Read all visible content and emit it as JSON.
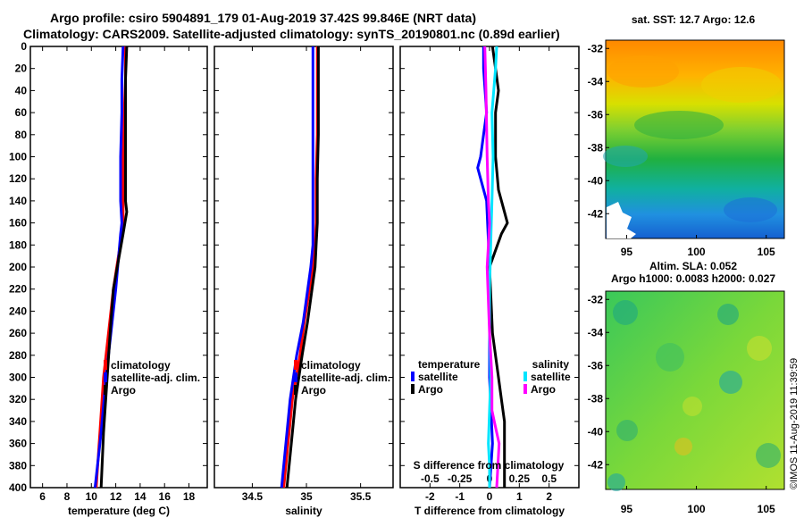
{
  "title_line1": "Argo profile: csiro 5904891_179 01-Aug-2019 37.42S 99.846E (NRT data)",
  "title_line2": "Climatology: CARS2009. Satellite-adjusted climatology: synTS_20190801.nc (0.89d earlier)",
  "credit": "©IMOS 11-Aug-2019 11:39:59",
  "colors": {
    "climatology": "#ff0000",
    "satellite": "#0000ff",
    "argo": "#000000",
    "sat_s": "#00e5ff",
    "argo_s": "#ff00ff"
  },
  "chart_data": [
    {
      "id": "temperature",
      "type": "line",
      "xlabel": "temperature (deg C)",
      "ylabel": "",
      "xlim": [
        5,
        19.5
      ],
      "ylim": [
        400,
        0
      ],
      "xticks": [
        6,
        8,
        10,
        12,
        14,
        16,
        18
      ],
      "yticks": [
        0,
        20,
        40,
        60,
        80,
        100,
        120,
        140,
        160,
        180,
        200,
        220,
        240,
        260,
        280,
        300,
        320,
        340,
        360,
        380,
        400
      ],
      "legend": {
        "position": "center-right",
        "entries": [
          {
            "label": "climatology",
            "color": "#ff0000"
          },
          {
            "label": "satellite-adj. clim.",
            "color": "#0000ff"
          },
          {
            "label": "Argo",
            "color": "#000000"
          }
        ]
      },
      "series": [
        {
          "name": "climatology",
          "color": "#ff0000",
          "x": [
            12.8,
            12.8,
            12.7,
            12.6,
            12.6,
            12.6,
            12.5,
            11.8,
            11.5,
            11.0,
            10.7,
            10.4
          ],
          "y": [
            0,
            30,
            60,
            100,
            140,
            160,
            170,
            220,
            250,
            300,
            350,
            400
          ]
        },
        {
          "name": "satellite-adj. clim.",
          "color": "#0000ff",
          "x": [
            12.6,
            12.5,
            12.5,
            12.4,
            12.4,
            12.5,
            12.4,
            12.0,
            11.7,
            11.2,
            10.8,
            10.3
          ],
          "y": [
            0,
            30,
            60,
            100,
            140,
            160,
            170,
            220,
            250,
            300,
            350,
            400
          ]
        },
        {
          "name": "Argo",
          "color": "#000000",
          "x": [
            12.9,
            12.8,
            12.8,
            12.8,
            12.8,
            12.9,
            12.6,
            11.8,
            11.6,
            11.3,
            11.0,
            10.8
          ],
          "y": [
            0,
            30,
            60,
            100,
            140,
            150,
            170,
            220,
            250,
            300,
            350,
            400
          ]
        }
      ]
    },
    {
      "id": "salinity",
      "type": "line",
      "xlabel": "salinity",
      "ylabel": "",
      "xlim": [
        34.15,
        35.8
      ],
      "ylim": [
        400,
        0
      ],
      "xticks": [
        34.5,
        35,
        35.5
      ],
      "legend": {
        "position": "center-right",
        "entries": [
          {
            "label": "climatology",
            "color": "#ff0000"
          },
          {
            "label": "satellite-adj. clim.",
            "color": "#0000ff"
          },
          {
            "label": "Argo",
            "color": "#000000"
          }
        ]
      },
      "series": [
        {
          "name": "climatology",
          "color": "#ff0000",
          "x": [
            35.1,
            35.1,
            35.1,
            35.09,
            35.09,
            35.08,
            35.06,
            34.98,
            34.94,
            34.87,
            34.83,
            34.79
          ],
          "y": [
            0,
            40,
            80,
            120,
            160,
            180,
            200,
            250,
            280,
            320,
            360,
            400
          ]
        },
        {
          "name": "satellite-adj. clim.",
          "color": "#0000ff",
          "x": [
            35.06,
            35.06,
            35.06,
            35.06,
            35.06,
            35.06,
            35.04,
            34.97,
            34.91,
            34.85,
            34.81,
            34.77
          ],
          "y": [
            0,
            40,
            80,
            120,
            160,
            180,
            200,
            250,
            280,
            320,
            360,
            400
          ]
        },
        {
          "name": "Argo",
          "color": "#000000",
          "x": [
            35.11,
            35.11,
            35.11,
            35.1,
            35.1,
            35.09,
            35.08,
            35.01,
            34.96,
            34.9,
            34.86,
            34.82
          ],
          "y": [
            0,
            40,
            80,
            120,
            160,
            180,
            200,
            250,
            280,
            320,
            360,
            400
          ]
        }
      ]
    },
    {
      "id": "difference",
      "type": "line",
      "xlabel": "T difference from climatology",
      "xlabel_top": "S difference from climatology",
      "xlim": [
        -3,
        3
      ],
      "xlim_s": [
        -0.75,
        0.75
      ],
      "ylim": [
        400,
        0
      ],
      "xticks": [
        -2,
        -1,
        0,
        1,
        2
      ],
      "xticks_s": [
        -0.5,
        -0.25,
        0,
        0.25,
        0.5
      ],
      "legend": {
        "position": "center",
        "temperature_heading": "temperature",
        "salinity_heading": "salinity",
        "entries_t": [
          {
            "label": "satellite",
            "color": "#0000ff"
          },
          {
            "label": "Argo",
            "color": "#000000"
          }
        ],
        "entries_s": [
          {
            "label": "satellite",
            "color": "#00e5ff"
          },
          {
            "label": "Argo",
            "color": "#ff00ff"
          }
        ]
      },
      "series": [
        {
          "name": "T satellite",
          "color": "#0000ff",
          "x": [
            -0.2,
            -0.2,
            -0.1,
            -0.2,
            -0.3,
            -0.4,
            -0.1,
            0,
            0,
            0,
            0.1,
            0
          ],
          "y": [
            0,
            20,
            60,
            80,
            100,
            110,
            140,
            200,
            260,
            300,
            360,
            400
          ]
        },
        {
          "name": "T Argo",
          "color": "#000000",
          "x": [
            0.1,
            0.2,
            0.3,
            0.2,
            0.2,
            0.3,
            0.5,
            0.6,
            0.4,
            0,
            0.1,
            0.3,
            0.4,
            0.5,
            0.5,
            0.5
          ],
          "y": [
            0,
            20,
            40,
            60,
            100,
            130,
            150,
            160,
            170,
            200,
            260,
            300,
            320,
            340,
            360,
            400
          ]
        },
        {
          "name": "S satellite",
          "color": "#00e5ff",
          "x": [
            0.06,
            0.05,
            0.02,
            0.03,
            0.02,
            0.01,
            0,
            0,
            0.01,
            0,
            -0.01,
            0,
            0
          ],
          "y": [
            0,
            20,
            60,
            100,
            140,
            180,
            220,
            260,
            300,
            330,
            360,
            380,
            400
          ]
        },
        {
          "name": "S Argo",
          "color": "#ff00ff",
          "x": [
            -0.04,
            -0.03,
            -0.02,
            -0.01,
            0,
            -0.01,
            -0.02,
            0,
            0.02,
            0.02,
            0.04,
            0.08,
            0.06
          ],
          "y": [
            0,
            40,
            100,
            140,
            160,
            180,
            200,
            260,
            300,
            330,
            340,
            360,
            400
          ]
        }
      ]
    },
    {
      "id": "sst_map",
      "type": "heatmap",
      "title": "sat. SST: 12.7 Argo: 12.6",
      "xlim": [
        93.5,
        106.3
      ],
      "ylim": [
        -43.5,
        -31.5
      ],
      "xticks": [
        95,
        100,
        105
      ],
      "yticks": [
        -32,
        -34,
        -36,
        -38,
        -40,
        -42
      ]
    },
    {
      "id": "sla_map",
      "type": "heatmap",
      "title_line1": "Altim. SLA: 0.052",
      "title_line2": "Argo h1000: 0.0083 h2000: 0.027",
      "xlim": [
        93.5,
        106.3
      ],
      "ylim": [
        -43.5,
        -31.5
      ],
      "xticks": [
        95,
        100,
        105
      ],
      "yticks": [
        -32,
        -34,
        -36,
        -38,
        -40,
        -42
      ]
    }
  ]
}
